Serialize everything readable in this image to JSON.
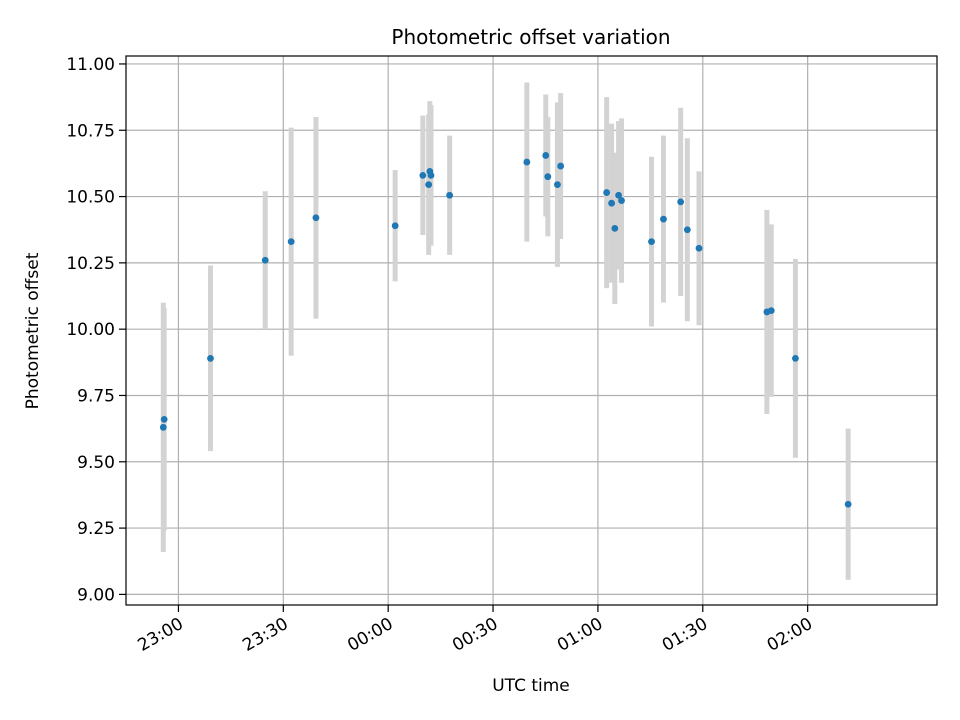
{
  "chart_data": {
    "type": "scatter",
    "title": "Photometric offset variation",
    "xlabel": "UTC time",
    "ylabel": "Photometric offset",
    "xlim": [
      "22:45",
      "02:37"
    ],
    "ylim": [
      8.96,
      11.03
    ],
    "x_ticks": [
      "23:00",
      "23:30",
      "00:00",
      "00:30",
      "01:00",
      "01:30",
      "02:00"
    ],
    "y_ticks": [
      "9.00",
      "9.25",
      "9.50",
      "9.75",
      "10.00",
      "10.25",
      "10.50",
      "10.75",
      "11.00"
    ],
    "grid": true,
    "colors": {
      "point": "#1f77b4",
      "errorbar": "#d3d3d3",
      "grid": "#b0b0b0"
    },
    "points": [
      {
        "x": "22:55:40",
        "y": 9.63,
        "err": 0.47
      },
      {
        "x": "22:55:55",
        "y": 9.66,
        "err": 0.42
      },
      {
        "x": "23:09:10",
        "y": 9.89,
        "err": 0.35
      },
      {
        "x": "23:24:50",
        "y": 10.26,
        "err": 0.26
      },
      {
        "x": "23:32:15",
        "y": 10.33,
        "err": 0.43
      },
      {
        "x": "23:39:20",
        "y": 10.42,
        "err": 0.38
      },
      {
        "x": "00:02:00",
        "y": 10.39,
        "err": 0.21
      },
      {
        "x": "00:09:55",
        "y": 10.58,
        "err": 0.225
      },
      {
        "x": "00:11:35",
        "y": 10.545,
        "err": 0.265
      },
      {
        "x": "00:11:55",
        "y": 10.595,
        "err": 0.265
      },
      {
        "x": "00:12:15",
        "y": 10.58,
        "err": 0.265
      },
      {
        "x": "00:17:35",
        "y": 10.505,
        "err": 0.225
      },
      {
        "x": "00:39:40",
        "y": 10.63,
        "err": 0.3
      },
      {
        "x": "00:45:05",
        "y": 10.655,
        "err": 0.23
      },
      {
        "x": "00:45:40",
        "y": 10.575,
        "err": 0.225
      },
      {
        "x": "00:48:25",
        "y": 10.545,
        "err": 0.31
      },
      {
        "x": "00:49:20",
        "y": 10.615,
        "err": 0.275
      },
      {
        "x": "01:02:30",
        "y": 10.515,
        "err": 0.36
      },
      {
        "x": "01:03:55",
        "y": 10.475,
        "err": 0.3
      },
      {
        "x": "01:04:50",
        "y": 10.38,
        "err": 0.285
      },
      {
        "x": "01:05:55",
        "y": 10.505,
        "err": 0.28
      },
      {
        "x": "01:06:45",
        "y": 10.485,
        "err": 0.31
      },
      {
        "x": "01:15:20",
        "y": 10.33,
        "err": 0.32
      },
      {
        "x": "01:18:45",
        "y": 10.415,
        "err": 0.315
      },
      {
        "x": "01:23:40",
        "y": 10.48,
        "err": 0.355
      },
      {
        "x": "01:25:35",
        "y": 10.375,
        "err": 0.345
      },
      {
        "x": "01:28:55",
        "y": 10.305,
        "err": 0.29
      },
      {
        "x": "01:48:20",
        "y": 10.065,
        "err": 0.385
      },
      {
        "x": "01:49:35",
        "y": 10.07,
        "err": 0.325
      },
      {
        "x": "01:56:30",
        "y": 9.89,
        "err": 0.375
      },
      {
        "x": "02:11:35",
        "y": 9.34,
        "err": 0.285
      }
    ]
  }
}
